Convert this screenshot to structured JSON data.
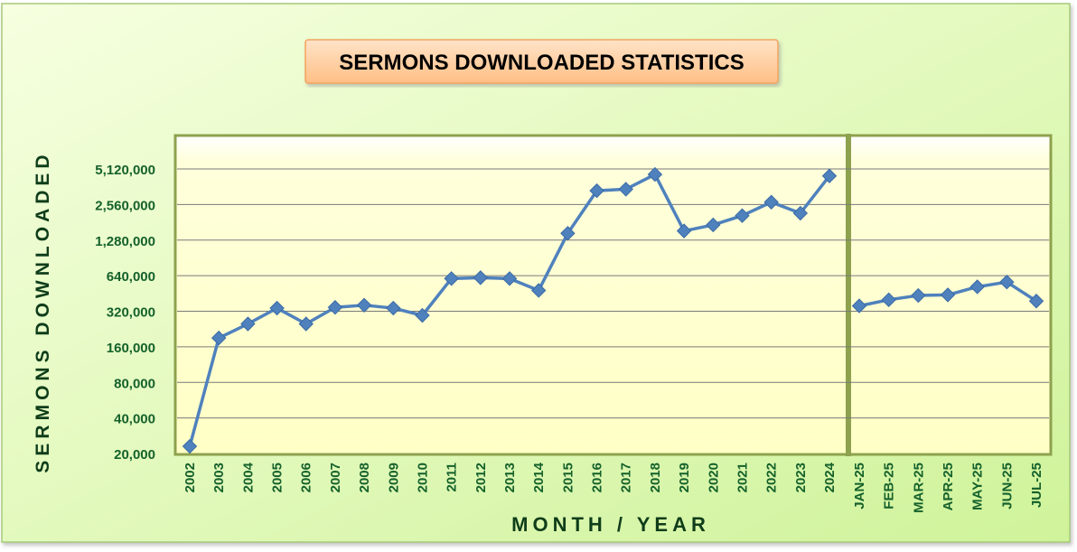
{
  "chart_data": {
    "type": "line",
    "title": "SERMONS DOWNLOADED STATISTICS",
    "xlabel": "MONTH / YEAR",
    "ylabel": "SERMONS DOWNLOADED",
    "yscale": "log2",
    "ylim": [
      20000,
      7000000
    ],
    "yticks": [
      "20,000",
      "40,000",
      "80,000",
      "160,000",
      "320,000",
      "640,000",
      "1,280,000",
      "2,560,000",
      "5,120,000"
    ],
    "ytick_values": [
      20000,
      40000,
      80000,
      160000,
      320000,
      640000,
      1280000,
      2560000,
      5120000
    ],
    "grid": true,
    "legend": "none",
    "panels": [
      {
        "name": "yearly",
        "categories": [
          "2002",
          "2003",
          "2004",
          "2005",
          "2006",
          "2007",
          "2008",
          "2009",
          "2010",
          "2011",
          "2012",
          "2013",
          "2014",
          "2015",
          "2016",
          "2017",
          "2018",
          "2019",
          "2020",
          "2021",
          "2022",
          "2023",
          "2024"
        ],
        "values": [
          23000,
          190000,
          250000,
          340000,
          250000,
          345000,
          360000,
          340000,
          295000,
          605000,
          615000,
          605000,
          480000,
          1460000,
          3350000,
          3450000,
          4600000,
          1530000,
          1720000,
          2060000,
          2680000,
          2160000,
          4470000
        ]
      },
      {
        "name": "monthly",
        "categories": [
          "JAN-25",
          "FEB-25",
          "MAR-25",
          "APR-25",
          "MAY-25",
          "JUN-25",
          "JUL-25"
        ],
        "values": [
          355000,
          400000,
          435000,
          440000,
          515000,
          565000,
          390000
        ]
      }
    ],
    "colors": {
      "line": "#4F81BD",
      "marker": "#4F81BD",
      "outer_bg_top": "#F3FFD8",
      "outer_bg_bottom": "#D2F5A0",
      "plot_bg": "#FFFFD2",
      "plot_border": "#8EA14E",
      "axis_text": "#15612B",
      "title_box_top": "#FFD9B8",
      "title_box_bottom": "#FFC08A",
      "title_box_border": "#F4A460"
    }
  }
}
